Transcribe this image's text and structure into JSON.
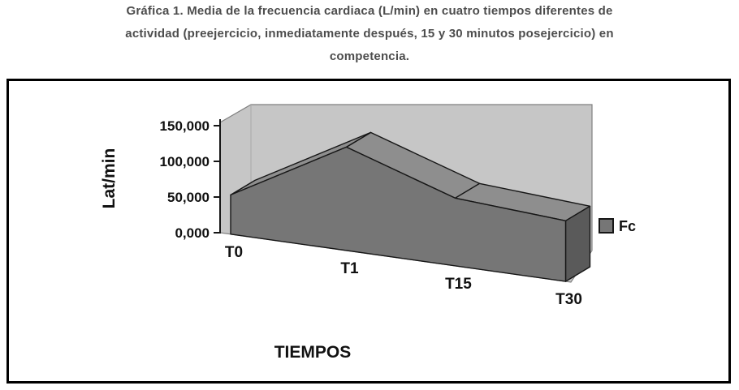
{
  "title": {
    "lines": [
      "Gráfica 1. Media de la frecuencia cardiaca (L/min) en cuatro tiempos diferentes de",
      "actividad (preejercicio, inmediatamente después, 15 y 30 minutos posejercicio) en",
      "competencia."
    ]
  },
  "chart_data": {
    "type": "area",
    "projection": "3d",
    "title": "Gráfica 1. Media de la frecuencia cardiaca (L/min) en cuatro tiempos diferentes de actividad (preejercicio, inmediatamente después, 15 y 30 minutos posejercicio) en competencia.",
    "categories": [
      "T0",
      "T1",
      "T15",
      "T30"
    ],
    "series": [
      {
        "name": "Fc",
        "values": [
          55,
          145,
          95,
          85
        ]
      }
    ],
    "xlabel": "TIEMPOS",
    "ylabel": "Lat/min",
    "ylim": [
      0,
      150
    ],
    "ytick_labels": [
      "150,000",
      "100,000",
      "50,000",
      "0,000"
    ],
    "ytick_values": [
      150,
      100,
      50,
      0
    ],
    "grid": false,
    "legend": {
      "label": "Fc",
      "position": "right"
    }
  },
  "colors": {
    "wall": "#c6c6c6",
    "wall_edge": "#7f7f7f",
    "wall_line": "#a8a8a8",
    "area_front": "#767676",
    "area_top": "#8e8e8e",
    "area_side": "#5a5a5a",
    "outline": "#161616",
    "title_text": "#4d4d4d",
    "box_border": "#000000"
  }
}
